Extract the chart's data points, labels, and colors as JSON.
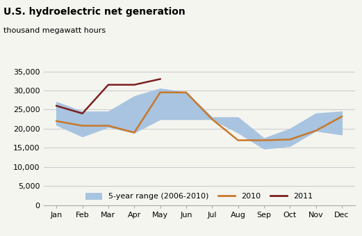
{
  "title": "U.S. hydroelectric net generation",
  "subtitle": "thousand megawatt hours",
  "months": [
    "Jan",
    "Feb",
    "Mar",
    "Apr",
    "May",
    "Jun",
    "Jul",
    "Aug",
    "Sep",
    "Oct",
    "Nov",
    "Dec"
  ],
  "range_low": [
    21000,
    18000,
    20500,
    19000,
    22500,
    22500,
    22500,
    19000,
    14800,
    15500,
    19500,
    18500
  ],
  "range_high": [
    27000,
    24500,
    24500,
    28500,
    30500,
    29500,
    23000,
    23000,
    17500,
    20000,
    24000,
    24500
  ],
  "line_2010": [
    22000,
    20800,
    20800,
    19000,
    29500,
    29500,
    22500,
    17000,
    17000,
    17200,
    19500,
    23200
  ],
  "line_2011": [
    26000,
    24000,
    31500,
    31500,
    33000,
    null,
    null,
    null,
    null,
    null,
    null,
    null
  ],
  "range_color": "#a8c4e0",
  "line_2010_color": "#c8782a",
  "line_2011_color": "#7b2020",
  "ylim": [
    0,
    37000
  ],
  "yticks": [
    0,
    5000,
    10000,
    15000,
    20000,
    25000,
    30000,
    35000
  ],
  "background_color": "#f5f5f0",
  "grid_color": "#cccccc"
}
